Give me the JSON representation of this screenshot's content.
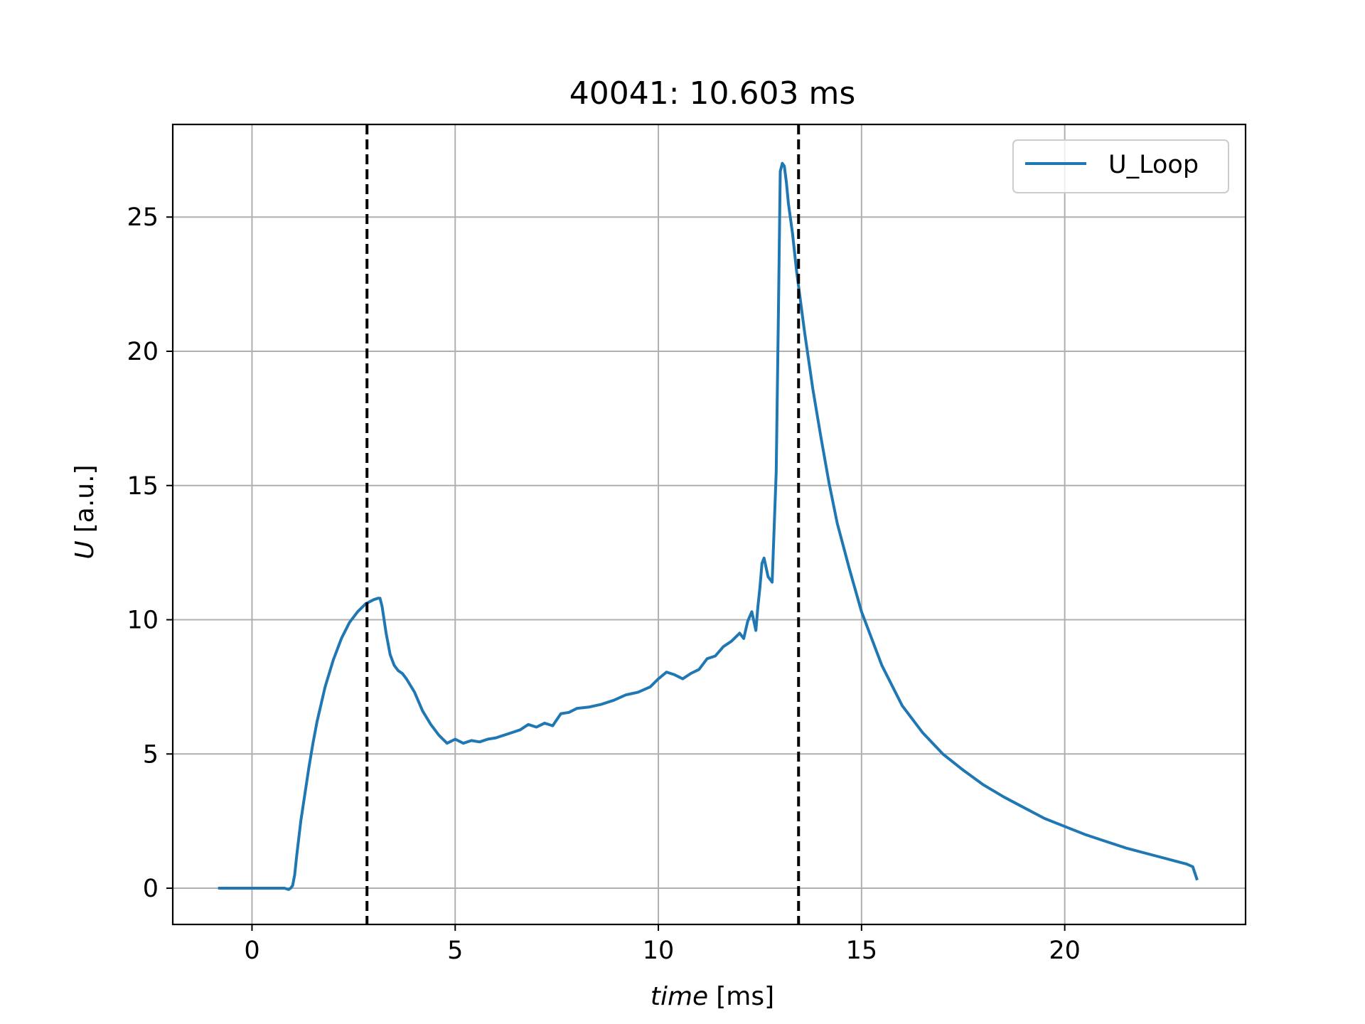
{
  "chart_data": {
    "type": "line",
    "title": "40041: 10.603 ms",
    "xlabel_italic": "time",
    "xlabel_unit": "[ms]",
    "ylabel_italic": "U",
    "ylabel_unit": "[a.u.]",
    "xlim": [
      -1.95,
      24.45
    ],
    "ylim": [
      -1.35,
      28.45
    ],
    "xticks": [
      0,
      5,
      10,
      15,
      20
    ],
    "yticks": [
      0,
      5,
      10,
      15,
      20,
      25
    ],
    "grid": true,
    "legend_position": "top-right",
    "vlines": [
      {
        "x": 2.83,
        "style": "dashed",
        "color": "#000000"
      },
      {
        "x": 13.45,
        "style": "dashed",
        "color": "#000000"
      }
    ],
    "series": [
      {
        "name": "U_Loop",
        "color": "#1f77b4",
        "x": [
          -0.8,
          -0.4,
          0.0,
          0.4,
          0.8,
          0.9,
          0.95,
          1.0,
          1.05,
          1.1,
          1.2,
          1.3,
          1.4,
          1.5,
          1.6,
          1.8,
          2.0,
          2.2,
          2.4,
          2.6,
          2.8,
          3.0,
          3.1,
          3.15,
          3.2,
          3.3,
          3.4,
          3.5,
          3.6,
          3.7,
          3.8,
          4.0,
          4.2,
          4.4,
          4.6,
          4.8,
          5.0,
          5.2,
          5.4,
          5.6,
          5.8,
          6.0,
          6.2,
          6.4,
          6.6,
          6.8,
          7.0,
          7.2,
          7.4,
          7.6,
          7.8,
          8.0,
          8.3,
          8.6,
          8.9,
          9.2,
          9.5,
          9.8,
          10.0,
          10.2,
          10.4,
          10.6,
          10.8,
          11.0,
          11.2,
          11.4,
          11.6,
          11.8,
          12.0,
          12.1,
          12.2,
          12.3,
          12.4,
          12.45,
          12.5,
          12.55,
          12.6,
          12.7,
          12.8,
          12.9,
          12.95,
          13.0,
          13.05,
          13.1,
          13.15,
          13.2,
          13.3,
          13.4,
          13.6,
          13.8,
          14.0,
          14.2,
          14.4,
          14.7,
          15.0,
          15.5,
          16.0,
          16.5,
          17.0,
          17.5,
          18.0,
          18.5,
          19.0,
          19.5,
          20.0,
          20.5,
          21.0,
          21.5,
          22.0,
          22.5,
          23.0,
          23.15,
          23.25
        ],
        "y": [
          0.0,
          0.0,
          0.0,
          0.0,
          0.0,
          -0.05,
          0.0,
          0.1,
          0.5,
          1.2,
          2.5,
          3.5,
          4.5,
          5.4,
          6.2,
          7.5,
          8.5,
          9.3,
          9.9,
          10.3,
          10.6,
          10.75,
          10.8,
          10.8,
          10.5,
          9.5,
          8.7,
          8.3,
          8.1,
          8.0,
          7.8,
          7.3,
          6.6,
          6.1,
          5.7,
          5.4,
          5.55,
          5.4,
          5.5,
          5.45,
          5.55,
          5.6,
          5.7,
          5.8,
          5.9,
          6.1,
          6.0,
          6.15,
          6.05,
          6.5,
          6.55,
          6.7,
          6.75,
          6.85,
          7.0,
          7.2,
          7.3,
          7.5,
          7.8,
          8.05,
          7.95,
          7.8,
          8.0,
          8.15,
          8.55,
          8.65,
          9.0,
          9.2,
          9.5,
          9.3,
          9.95,
          10.3,
          9.6,
          10.5,
          11.2,
          12.1,
          12.3,
          11.6,
          11.4,
          15.5,
          21.0,
          26.7,
          27.0,
          26.9,
          26.3,
          25.5,
          24.4,
          23.0,
          20.7,
          18.6,
          16.8,
          15.1,
          13.6,
          11.9,
          10.3,
          8.3,
          6.8,
          5.8,
          5.0,
          4.4,
          3.85,
          3.4,
          3.0,
          2.6,
          2.3,
          2.0,
          1.75,
          1.5,
          1.3,
          1.1,
          0.9,
          0.8,
          0.35
        ]
      }
    ]
  }
}
